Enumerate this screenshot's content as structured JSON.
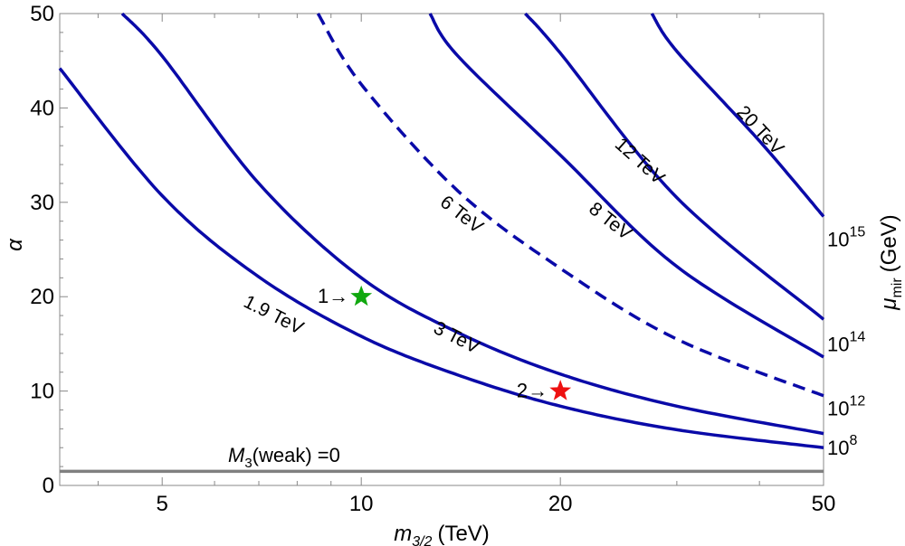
{
  "chart_data": {
    "type": "line",
    "xlabel": {
      "main": "m",
      "sub": "3/2",
      "unit": "(TeV)"
    },
    "ylabel": "α",
    "right_axis_label": {
      "main": "μ",
      "sub": "mir",
      "unit": "(GeV)"
    },
    "xscale": "log",
    "xlim": [
      3.5,
      50
    ],
    "ylim": [
      0,
      50
    ],
    "x_ticks": [
      5,
      10,
      20,
      50
    ],
    "x_minor_ticks": [
      4,
      6,
      7,
      8,
      9,
      30,
      40
    ],
    "y_ticks": [
      0,
      10,
      20,
      30,
      40,
      50
    ],
    "series": [
      {
        "name": "1.9 TeV",
        "label": "1.9 TeV",
        "style": "solid",
        "points": [
          [
            3.5,
            44.2
          ],
          [
            5,
            30.7
          ],
          [
            7,
            22.1
          ],
          [
            10,
            15.8
          ],
          [
            14,
            11.7
          ],
          [
            20,
            8.4
          ],
          [
            30,
            5.9
          ],
          [
            50,
            4.0
          ]
        ],
        "label_at": [
          7.3,
          17.5
        ],
        "label_angle": 27
      },
      {
        "name": "3 TeV",
        "label": "3 TeV",
        "style": "solid",
        "points": [
          [
            4.35,
            50
          ],
          [
            5,
            45.5
          ],
          [
            7,
            32.0
          ],
          [
            10,
            22.0
          ],
          [
            14,
            16.2
          ],
          [
            20,
            11.8
          ],
          [
            30,
            8.4
          ],
          [
            50,
            5.5
          ]
        ],
        "label_at": [
          13.8,
          15.1
        ],
        "label_angle": 27
      },
      {
        "name": "6 TeV",
        "label": "6 TeV",
        "style": "dashed",
        "points": [
          [
            8.6,
            50
          ],
          [
            10,
            42.5
          ],
          [
            14,
            31.2
          ],
          [
            20,
            23.0
          ],
          [
            30,
            15.5
          ],
          [
            50,
            9.5
          ]
        ],
        "label_at": [
          14.0,
          28.2
        ],
        "label_angle": 38
      },
      {
        "name": "8 TeV",
        "label": "8 TeV",
        "style": "solid",
        "points": [
          [
            12.7,
            50
          ],
          [
            14,
            45.5
          ],
          [
            20,
            35.0
          ],
          [
            30,
            23.2
          ],
          [
            50,
            13.6
          ]
        ],
        "label_at": [
          23.5,
          27.5
        ],
        "label_angle": 38
      },
      {
        "name": "12 TeV",
        "label": "12 TeV",
        "style": "solid",
        "points": [
          [
            17.7,
            50
          ],
          [
            20,
            45.8
          ],
          [
            30,
            30.5
          ],
          [
            50,
            17.6
          ]
        ],
        "label_at": [
          26.0,
          33.9
        ],
        "label_angle": 42
      },
      {
        "name": "20 TeV",
        "label": "20 TeV",
        "style": "solid",
        "points": [
          [
            27.5,
            50
          ],
          [
            30,
            46.0
          ],
          [
            40,
            36.5
          ],
          [
            50,
            28.5
          ]
        ],
        "label_at": [
          39.5,
          37.2
        ],
        "label_angle": 47
      }
    ],
    "horizontal_line": {
      "y": 1.5,
      "label_main": "M",
      "label_sub": "3",
      "label_rest": "(weak) =0",
      "color": "#808080"
    },
    "markers": [
      {
        "id": "1",
        "label": "1→",
        "x": 10,
        "y": 20,
        "color": "#11a80f"
      },
      {
        "id": "2",
        "label": "2→",
        "x": 20,
        "y": 10,
        "color": "#ee1111"
      }
    ],
    "right_axis_ticks": [
      {
        "base": "10",
        "exp": "15",
        "y": 26.3
      },
      {
        "base": "10",
        "exp": "14",
        "y": 15.2
      },
      {
        "base": "10",
        "exp": "12",
        "y": 8.4
      },
      {
        "base": "10",
        "exp": "8",
        "y": 4.2
      }
    ],
    "colors": {
      "curve": "#0a0aa8",
      "grid_line": "#808080",
      "axis": "#888888"
    }
  }
}
